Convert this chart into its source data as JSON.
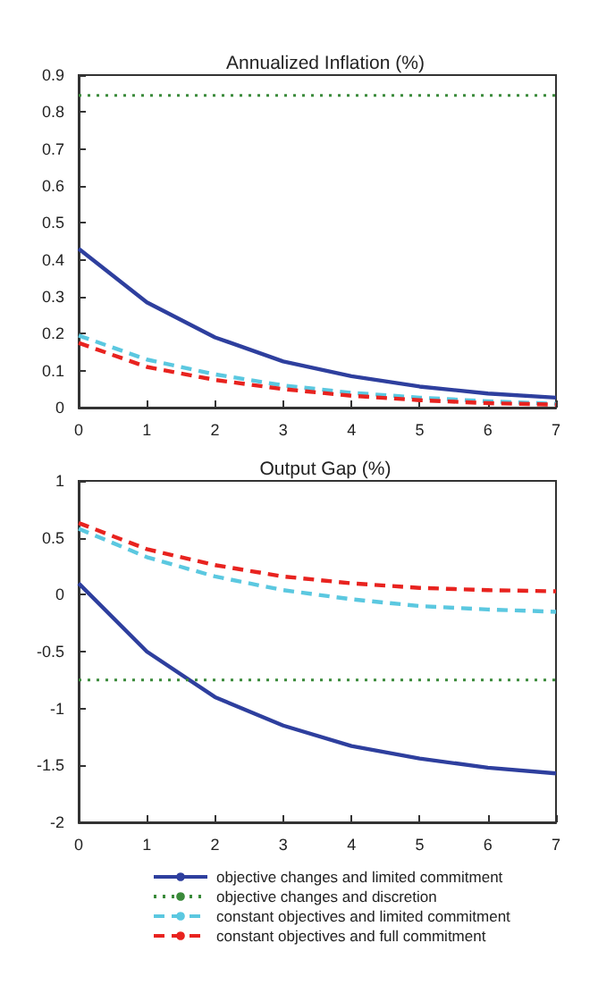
{
  "chart_data": [
    {
      "type": "line",
      "title": "Annualized Inflation (%)",
      "x": [
        0,
        1,
        2,
        3,
        4,
        5,
        6,
        7
      ],
      "xlim": [
        0,
        7
      ],
      "xticks": [
        0,
        1,
        2,
        3,
        4,
        5,
        6,
        7
      ],
      "ylim": [
        0,
        0.9
      ],
      "yticks": [
        0,
        0.1,
        0.2,
        0.3,
        0.4,
        0.5,
        0.6,
        0.7,
        0.8,
        0.9
      ],
      "grid": false,
      "legend": false,
      "marker": "none",
      "series": [
        {
          "color": "#2e3f9e",
          "line_style": "solid",
          "values": [
            0.43,
            0.285,
            0.19,
            0.125,
            0.085,
            0.057,
            0.038,
            0.027
          ]
        },
        {
          "color": "#3a8a3a",
          "line_style": "dotted",
          "values": [
            0.845,
            0.845,
            0.845,
            0.845,
            0.845,
            0.845,
            0.845,
            0.845
          ]
        },
        {
          "color": "#5bc8e0",
          "line_style": "dashed",
          "values": [
            0.195,
            0.13,
            0.09,
            0.06,
            0.04,
            0.027,
            0.017,
            0.01
          ]
        },
        {
          "color": "#e8231f",
          "line_style": "dashed",
          "values": [
            0.175,
            0.11,
            0.075,
            0.05,
            0.032,
            0.02,
            0.012,
            0.008
          ]
        }
      ]
    },
    {
      "type": "line",
      "title": "Output Gap (%)",
      "x": [
        0,
        1,
        2,
        3,
        4,
        5,
        6,
        7
      ],
      "xlim": [
        0,
        7
      ],
      "xticks": [
        0,
        1,
        2,
        3,
        4,
        5,
        6,
        7
      ],
      "ylim": [
        -2,
        1
      ],
      "yticks": [
        -2,
        -1.5,
        -1,
        -0.5,
        0,
        0.5,
        1
      ],
      "grid": false,
      "legend": "bottom",
      "marker": "none",
      "series": [
        {
          "name": "objective changes and limited commitment",
          "color": "#2e3f9e",
          "line_style": "solid",
          "values": [
            0.1,
            -0.5,
            -0.9,
            -1.15,
            -1.33,
            -1.44,
            -1.52,
            -1.57
          ]
        },
        {
          "name": "objective changes and discretion",
          "color": "#3a8a3a",
          "line_style": "dotted",
          "values": [
            -0.75,
            -0.75,
            -0.75,
            -0.75,
            -0.75,
            -0.75,
            -0.75,
            -0.75
          ]
        },
        {
          "name": "constant objectives and limited commitment",
          "color": "#5bc8e0",
          "line_style": "dashed",
          "values": [
            0.58,
            0.33,
            0.16,
            0.04,
            -0.04,
            -0.1,
            -0.13,
            -0.15
          ]
        },
        {
          "name": "constant objectives and full commitment",
          "color": "#e8231f",
          "line_style": "dashed",
          "values": [
            0.63,
            0.4,
            0.26,
            0.16,
            0.1,
            0.06,
            0.04,
            0.03
          ]
        }
      ]
    }
  ]
}
